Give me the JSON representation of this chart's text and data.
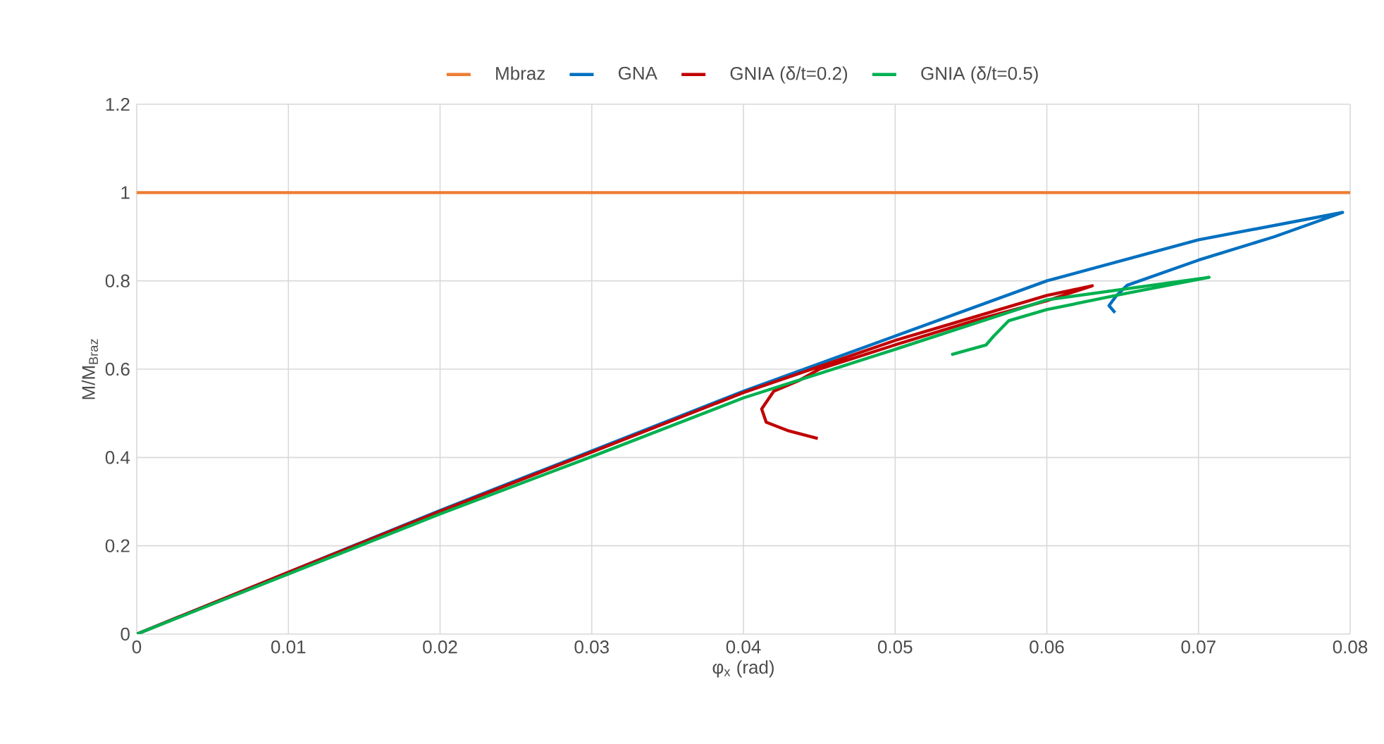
{
  "chart_data": {
    "type": "line",
    "xlabel": "φ$_{x}$ (rad)",
    "ylabel": "M/M$_{Braz}$",
    "xlim": [
      0,
      0.08
    ],
    "ylim": [
      0,
      1.2
    ],
    "xticks": [
      0,
      0.01,
      0.02,
      0.03,
      0.04,
      0.05,
      0.06,
      0.07,
      0.08
    ],
    "yticks": [
      0,
      0.2,
      0.4,
      0.6,
      0.8,
      1,
      1.2
    ],
    "grid": true,
    "legend": "top",
    "marker": "none",
    "line_style": "solid",
    "series": [
      {
        "name": "Mbraz",
        "color": "#ed7d31",
        "x": [
          0,
          0.08
        ],
        "values": [
          1,
          1
        ]
      },
      {
        "name": "GNA",
        "color": "#0070c0",
        "x": [
          0,
          0.01,
          0.02,
          0.03,
          0.04,
          0.05,
          0.06,
          0.07,
          0.0795,
          0.075,
          0.07,
          0.0653,
          0.0646,
          0.0641,
          0.0645
        ],
        "values": [
          0,
          0.14,
          0.28,
          0.415,
          0.55,
          0.675,
          0.8,
          0.893,
          0.955,
          0.9,
          0.847,
          0.79,
          0.767,
          0.744,
          0.728
        ]
      },
      {
        "name": "GNIA (δ/t=0.2)",
        "color": "#c00000",
        "x": [
          0,
          0.01,
          0.02,
          0.03,
          0.04,
          0.05,
          0.06,
          0.063,
          0.06,
          0.0554,
          0.05,
          0.045,
          0.0437,
          0.042,
          0.0412,
          0.0415,
          0.043,
          0.0449
        ],
        "values": [
          0,
          0.14,
          0.278,
          0.412,
          0.547,
          0.665,
          0.767,
          0.789,
          0.755,
          0.712,
          0.655,
          0.6,
          0.575,
          0.55,
          0.51,
          0.48,
          0.46,
          0.443
        ]
      },
      {
        "name": "GNIA (δ/t=0.5)",
        "color": "#00b050",
        "x": [
          0,
          0.01,
          0.02,
          0.03,
          0.04,
          0.05,
          0.06,
          0.0707,
          0.065,
          0.06,
          0.0575,
          0.0565,
          0.056,
          0.0537
        ],
        "values": [
          0,
          0.136,
          0.272,
          0.402,
          0.535,
          0.645,
          0.757,
          0.808,
          0.77,
          0.735,
          0.71,
          0.675,
          0.655,
          0.633
        ]
      }
    ]
  }
}
